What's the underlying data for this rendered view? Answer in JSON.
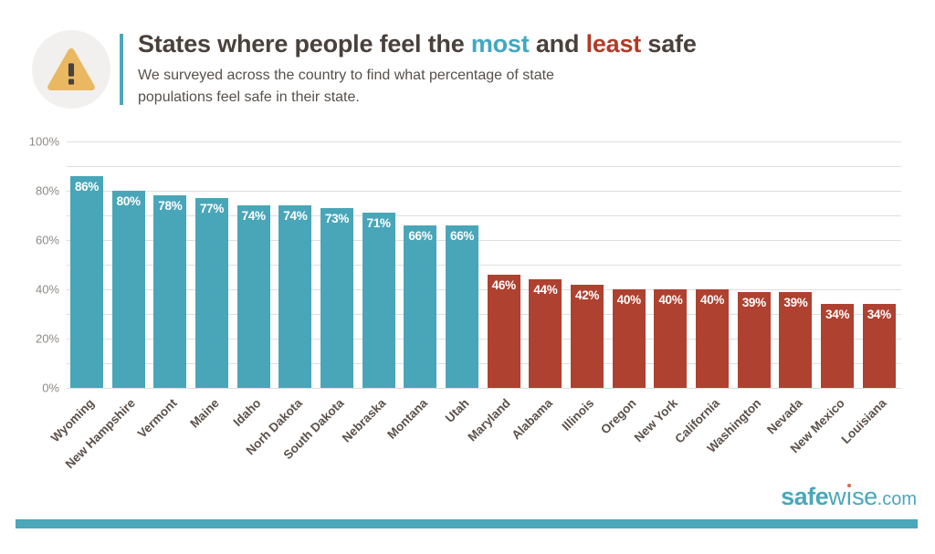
{
  "header": {
    "title": {
      "prefix": "States where people feel the ",
      "most": "most",
      "mid": " and ",
      "least": "least",
      "suffix": " safe"
    },
    "subtitle": "We surveyed across the country to find what percentage of state populations feel safe in their state.",
    "warning_icon": "warning-triangle-exclamation"
  },
  "chart_data": {
    "type": "bar",
    "title": "States where people feel the most and least safe",
    "categories": [
      "Wyoming",
      "New Hampshire",
      "Vermont",
      "Maine",
      "Idaho",
      "Norh Dakota",
      "South Dakota",
      "Nebraska",
      "Montana",
      "Utah",
      "Maryland",
      "Alabama",
      "Illinois",
      "Oregon",
      "New York",
      "California",
      "Washington",
      "Nevada",
      "New Mexico",
      "Louisiana"
    ],
    "values": [
      86,
      80,
      78,
      77,
      74,
      74,
      73,
      71,
      66,
      66,
      46,
      44,
      42,
      40,
      40,
      40,
      39,
      39,
      34,
      34
    ],
    "value_labels": [
      "86%",
      "80%",
      "78%",
      "77%",
      "74%",
      "74%",
      "73%",
      "71%",
      "66%",
      "66%",
      "46%",
      "44%",
      "42%",
      "40%",
      "40%",
      "40%",
      "39%",
      "39%",
      "34%",
      "34%"
    ],
    "groups": [
      "most",
      "most",
      "most",
      "most",
      "most",
      "most",
      "most",
      "most",
      "most",
      "most",
      "least",
      "least",
      "least",
      "least",
      "least",
      "least",
      "least",
      "least",
      "least",
      "least"
    ],
    "group_colors": {
      "most": "#49a6b9",
      "least": "#af4130"
    },
    "xlabel": "",
    "ylabel": "",
    "ylim": [
      0,
      100
    ],
    "ytick_labels": [
      "0%",
      "20%",
      "40%",
      "60%",
      "80%",
      "100%"
    ],
    "ytick_values": [
      0,
      20,
      40,
      60,
      80,
      100
    ],
    "grid": "horizontal",
    "grid_step_percent": 10,
    "legend": "none",
    "bar_value_label_color": "#ffffff"
  },
  "footer": {
    "logo": {
      "safe": "safe",
      "wise": "wise",
      "com": ".com"
    },
    "accent_bar_color": "#4ba7ba"
  },
  "colors": {
    "teal": "#49a6b9",
    "red": "#af4130",
    "title_text": "#4a413c",
    "subtitle_text": "#57504b",
    "axis_label": "#8e8a86",
    "state_label": "#5c5049",
    "gridline": "#dedede",
    "warning_circle_bg": "#f1f0ee",
    "warning_triangle": "#ebb862",
    "warning_exclamation": "#4a413c"
  }
}
